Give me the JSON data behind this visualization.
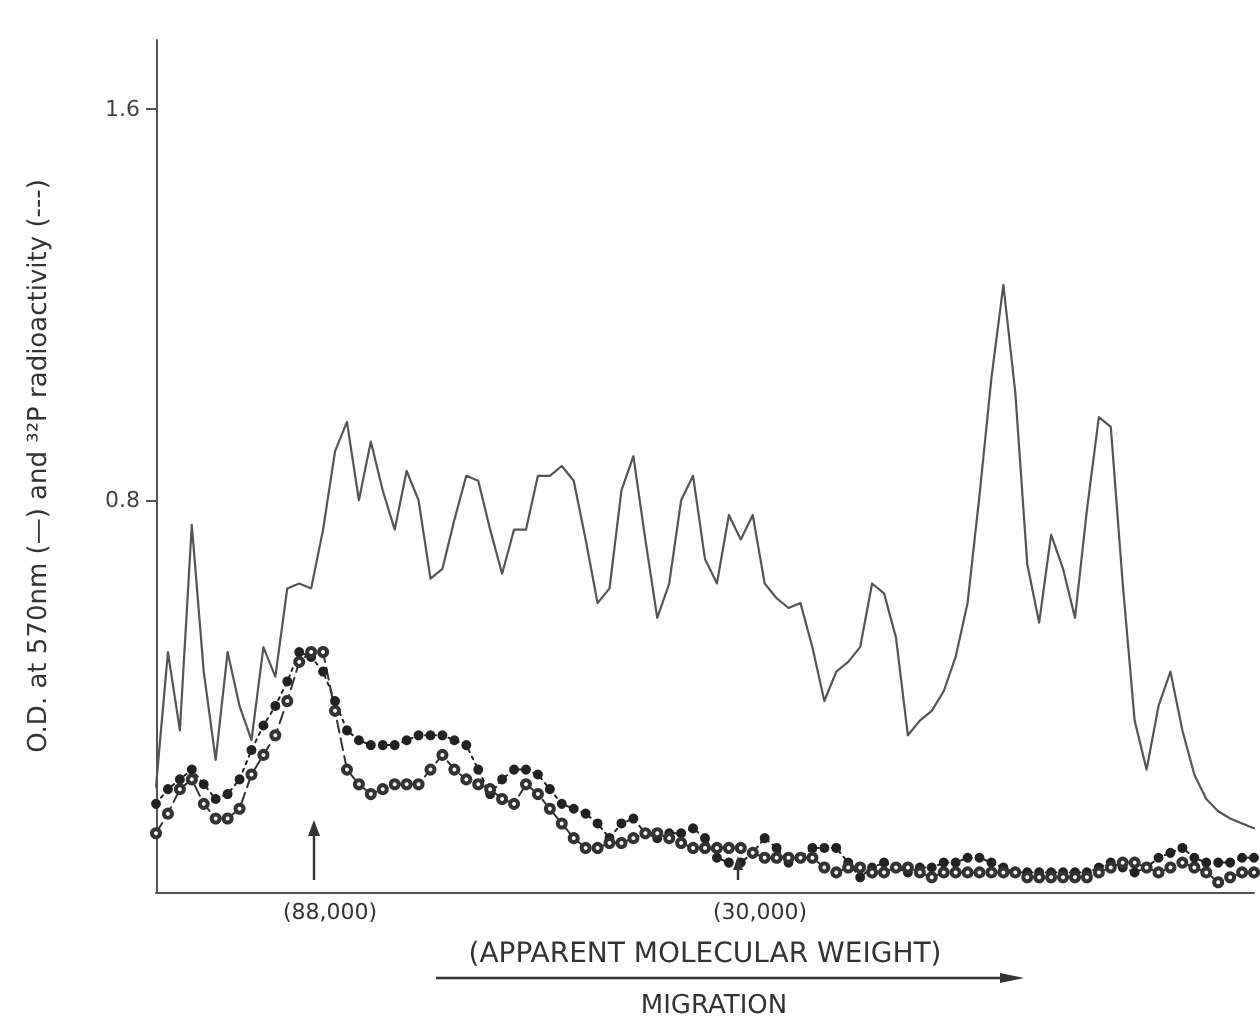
{
  "chart_data": {
    "type": "line",
    "ylabel": "O.D. at 570nm (—) and ³²P radioactivity (---)",
    "xlabel": "(APPARENT MOLECULAR WEIGHT)",
    "annotations": [
      "(88,000)",
      "(30,000)",
      "MIGRATION"
    ],
    "categories": [
      null,
      null,
      null,
      null,
      null,
      null,
      null,
      null,
      null,
      null,
      null,
      null,
      null,
      null,
      null,
      null,
      null,
      null,
      null,
      null,
      null,
      null,
      null,
      null,
      null,
      null,
      null,
      null,
      null,
      null,
      null,
      null,
      null,
      null,
      null,
      null,
      null,
      null,
      null,
      null,
      null,
      null,
      null,
      null,
      null,
      null,
      null,
      null,
      null,
      null,
      null,
      null,
      null,
      null,
      null,
      null,
      null,
      null,
      null,
      null,
      null,
      null,
      null,
      null,
      null,
      null,
      null,
      null,
      null,
      null,
      null,
      null,
      null,
      null,
      null,
      null,
      null,
      null,
      null,
      null,
      null,
      null,
      null,
      null,
      null,
      null,
      null,
      null,
      null,
      null,
      null,
      null,
      null
    ],
    "ylim": [
      0,
      1.74
    ],
    "yticks": [
      0.8,
      1.6
    ],
    "series": [
      {
        "color": "#555555",
        "line_style": "solid",
        "marker": "none",
        "values": [
          0.215,
          0.49,
          0.33,
          0.75,
          0.45,
          0.27,
          0.49,
          0.38,
          0.31,
          0.5,
          0.44,
          0.62,
          0.63,
          0.62,
          0.74,
          0.9,
          0.96,
          0.8,
          0.92,
          0.82,
          0.74,
          0.86,
          0.8,
          0.64,
          0.66,
          0.76,
          0.85,
          0.84,
          0.74,
          0.65,
          0.74,
          0.74,
          0.85,
          0.85,
          0.87,
          0.84,
          0.72,
          0.59,
          0.62,
          0.82,
          0.89,
          0.72,
          0.56,
          0.63,
          0.8,
          0.85,
          0.68,
          0.63,
          0.77,
          0.72,
          0.77,
          0.63,
          0.6,
          0.58,
          0.59,
          0.5,
          0.39,
          0.45,
          0.47,
          0.5,
          0.63,
          0.61,
          0.52,
          0.32,
          0.35,
          0.37,
          0.41,
          0.48,
          0.59,
          0.81,
          1.05,
          1.24,
          1.02,
          0.67,
          0.55,
          0.73,
          0.66,
          0.56,
          0.78,
          0.97,
          0.95,
          0.63,
          0.35,
          0.25,
          0.38,
          0.45,
          0.33,
          0.24,
          0.19,
          0.165,
          0.15,
          0.14,
          0.13
        ]
      },
      {
        "color": "#222222",
        "line_style": "dotted",
        "marker": "circle",
        "values": [
          0.18,
          0.21,
          0.23,
          0.25,
          0.22,
          0.19,
          0.2,
          0.23,
          0.29,
          0.34,
          0.38,
          0.43,
          0.49,
          0.48,
          0.45,
          0.39,
          0.33,
          0.31,
          0.3,
          0.3,
          0.3,
          0.31,
          0.32,
          0.32,
          0.32,
          0.31,
          0.3,
          0.25,
          0.2,
          0.23,
          0.25,
          0.25,
          0.24,
          0.21,
          0.18,
          0.17,
          0.16,
          0.14,
          0.11,
          0.14,
          0.15,
          0.12,
          0.11,
          0.12,
          0.12,
          0.13,
          0.11,
          0.07,
          0.06,
          0.06,
          0.08,
          0.11,
          0.09,
          0.06,
          0.07,
          0.09,
          0.09,
          0.09,
          0.06,
          0.03,
          0.05,
          0.06,
          0.05,
          0.04,
          0.05,
          0.05,
          0.06,
          0.06,
          0.07,
          0.07,
          0.06,
          0.05,
          0.04,
          0.04,
          0.04,
          0.04,
          0.04,
          0.04,
          0.04,
          0.05,
          0.06,
          0.05,
          0.04,
          0.05,
          0.07,
          0.08,
          0.09,
          0.07,
          0.06,
          0.06,
          0.06,
          0.07,
          0.07
        ]
      },
      {
        "color": "#333333",
        "line_style": "dashed",
        "marker": "open circle",
        "values": [
          0.12,
          0.16,
          0.21,
          0.23,
          0.18,
          0.15,
          0.15,
          0.17,
          0.24,
          0.28,
          0.32,
          0.39,
          0.47,
          0.49,
          0.49,
          0.37,
          0.25,
          0.22,
          0.2,
          0.21,
          0.22,
          0.22,
          0.22,
          0.25,
          0.28,
          0.25,
          0.23,
          0.22,
          0.21,
          0.19,
          0.18,
          0.22,
          0.2,
          0.17,
          0.14,
          0.11,
          0.09,
          0.09,
          0.1,
          0.1,
          0.11,
          0.12,
          0.12,
          0.11,
          0.1,
          0.09,
          0.09,
          0.09,
          0.09,
          0.09,
          0.08,
          0.07,
          0.07,
          0.07,
          0.07,
          0.07,
          0.05,
          0.04,
          0.05,
          0.05,
          0.04,
          0.04,
          0.05,
          0.05,
          0.04,
          0.03,
          0.04,
          0.04,
          0.04,
          0.04,
          0.04,
          0.04,
          0.04,
          0.03,
          0.03,
          0.03,
          0.03,
          0.03,
          0.03,
          0.04,
          0.05,
          0.06,
          0.06,
          0.05,
          0.04,
          0.05,
          0.06,
          0.05,
          0.04,
          0.02,
          0.03,
          0.04,
          0.04
        ]
      }
    ]
  }
}
